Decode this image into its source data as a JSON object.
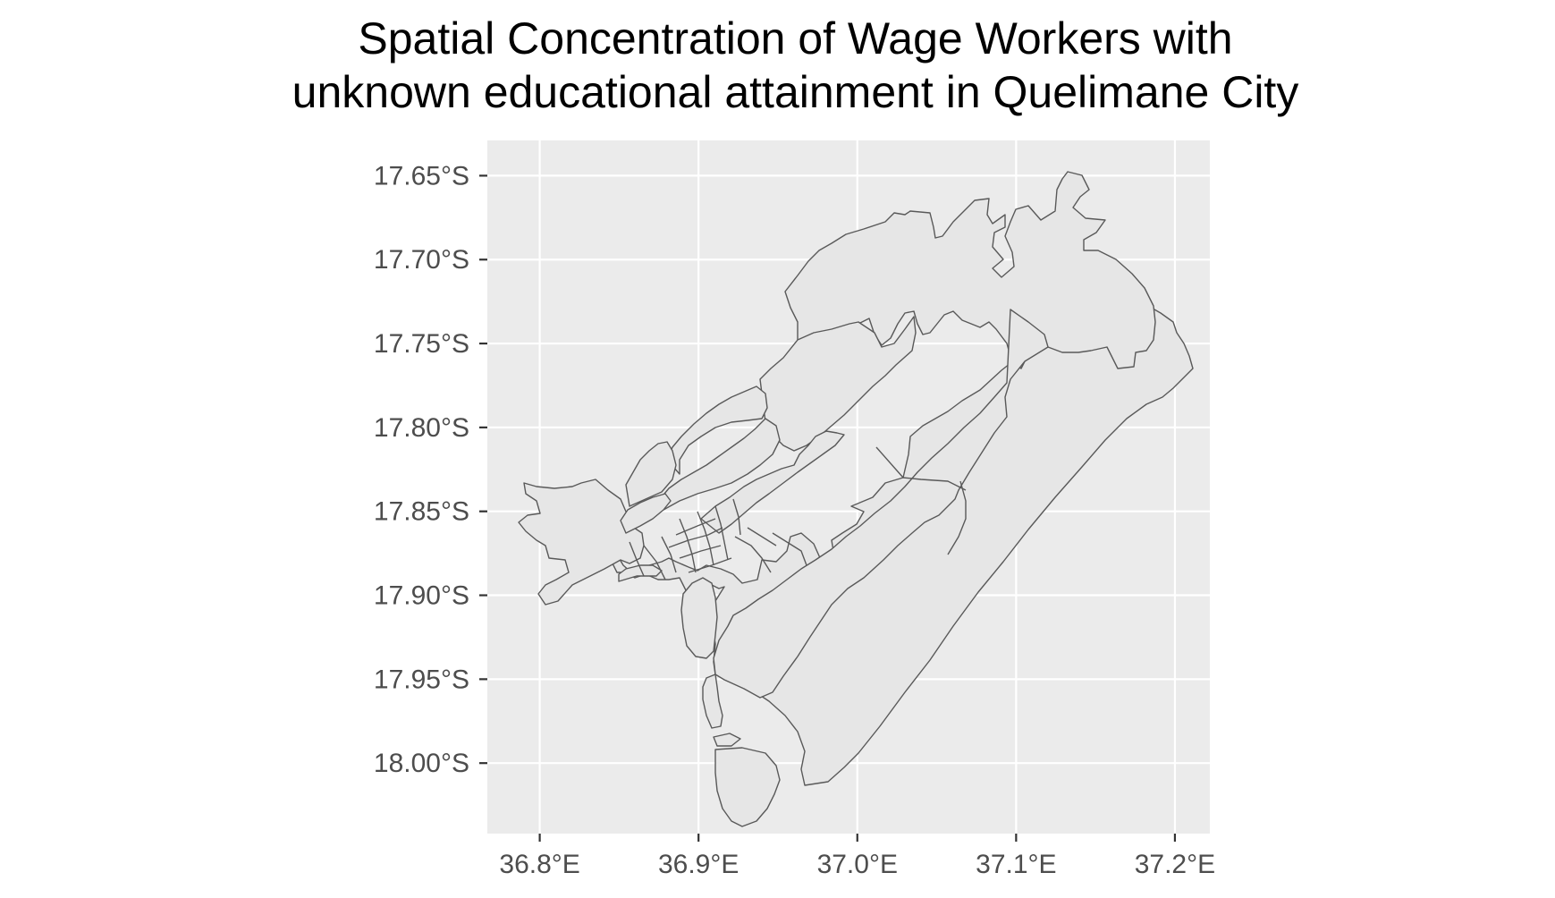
{
  "title_line1": "Spatial Concentration of Wage Workers with",
  "title_line2": "unknown educational attainment in Quelimane City",
  "map": {
    "type": "choropleth",
    "region": "Quelimane City",
    "fill_color": "#e6e6e6",
    "border_color": "#595959",
    "panel_color": "#ebebeb",
    "grid_color": "#ffffff",
    "grid": true,
    "x_ticks": [
      "36.8°E",
      "36.9°E",
      "37.0°E",
      "37.1°E",
      "37.2°E"
    ],
    "x_tick_values": [
      36.8,
      36.9,
      37.0,
      37.1,
      37.2
    ],
    "y_ticks": [
      "17.65°S",
      "17.70°S",
      "17.75°S",
      "17.80°S",
      "17.85°S",
      "17.90°S",
      "17.95°S",
      "18.00°S"
    ],
    "y_tick_values": [
      -17.65,
      -17.7,
      -17.75,
      -17.8,
      -17.85,
      -17.9,
      -17.95,
      -18.0
    ],
    "xlim": [
      36.767,
      37.222
    ],
    "ylim": [
      -18.042,
      -17.629
    ]
  }
}
